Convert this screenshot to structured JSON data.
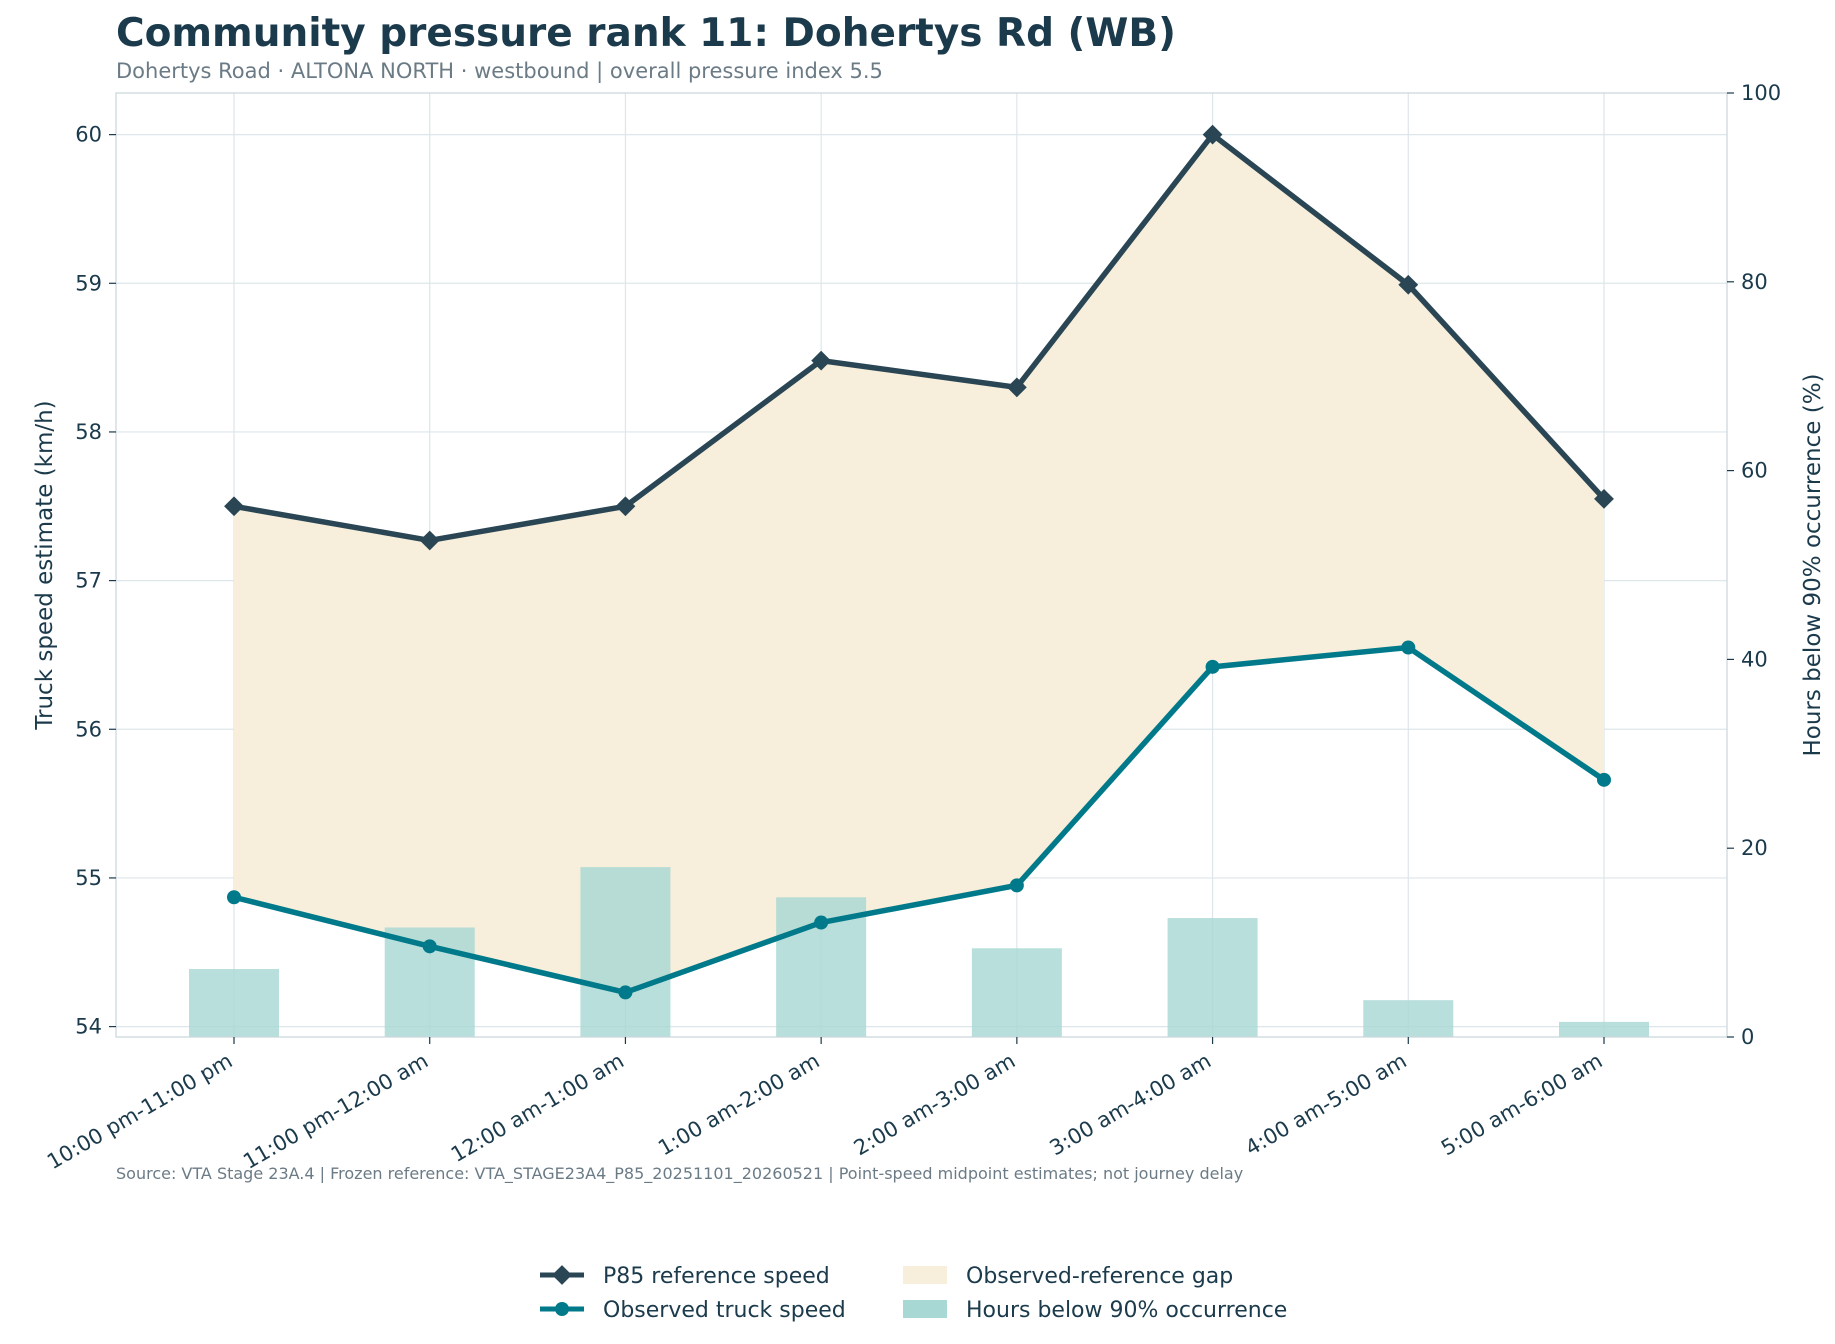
{
  "title": "Community pressure rank 11: Dohertys Rd (WB)",
  "subtitle": "Dohertys Road · ALTONA NORTH · westbound | overall pressure index 5.5",
  "source_note": "Source: VTA Stage 23A.4 | Frozen reference: VTA_STAGE23A4_P85_20251101_20260521 | Point-speed midpoint estimates; not journey delay",
  "colors": {
    "reference": "#2a4654",
    "observed": "#007a8a",
    "gap_fill": "#f7eedb",
    "bars": "#a8d8d3",
    "grid": "#dde6ea"
  },
  "chart_data": {
    "type": "line",
    "categories": [
      "10:00 pm-11:00 pm",
      "11:00 pm-12:00 am",
      "12:00 am-1:00 am",
      "1:00 am-2:00 am",
      "2:00 am-3:00 am",
      "3:00 am-4:00 am",
      "4:00 am-5:00 am",
      "5:00 am-6:00 am"
    ],
    "series": [
      {
        "name": "P85 reference speed",
        "type": "line",
        "marker": "diamond",
        "axis": "left",
        "values": [
          57.5,
          57.27,
          57.5,
          58.48,
          58.3,
          60.0,
          58.99,
          57.55
        ]
      },
      {
        "name": "Observed truck speed",
        "type": "line",
        "marker": "circle",
        "axis": "left",
        "values": [
          54.87,
          54.54,
          54.23,
          54.7,
          54.95,
          56.42,
          56.55,
          55.66
        ]
      },
      {
        "name": "Hours below 90% occurrence",
        "type": "bar",
        "axis": "right",
        "values": [
          7.2,
          11.6,
          18.0,
          14.8,
          9.4,
          12.6,
          3.9,
          1.6
        ]
      }
    ],
    "fill_between": {
      "name": "Observed-reference gap",
      "upper": "P85 reference speed",
      "lower": "Observed truck speed"
    },
    "ylabel": "Truck speed estimate (km/h)",
    "ylim": [
      53.93,
      60.28
    ],
    "yticks": [
      54,
      55,
      56,
      57,
      58,
      59,
      60
    ],
    "y2label": "Hours below 90% occurrence (%)",
    "y2lim": [
      0,
      100
    ],
    "y2ticks": [
      0,
      20,
      40,
      60,
      80,
      100
    ],
    "grid": true,
    "legend_position": "bottom-center"
  }
}
